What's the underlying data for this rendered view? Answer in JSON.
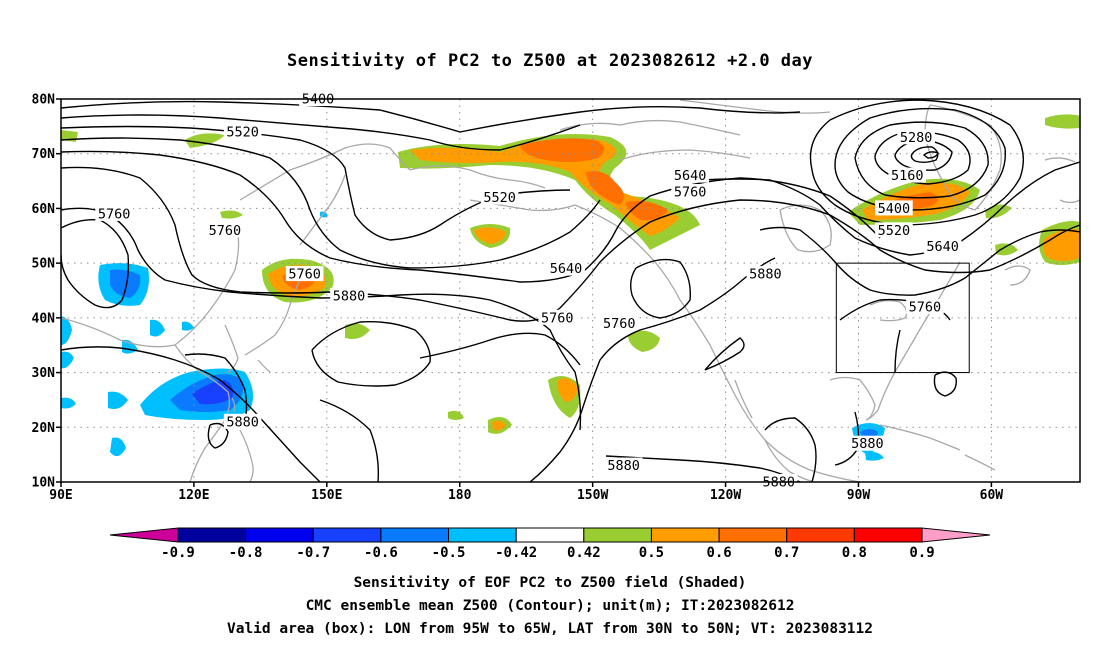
{
  "title": "Sensitivity of PC2 to Z500 at 2023082612 +2.0 day",
  "captions": [
    "Sensitivity of EOF PC2 to Z500 field (Shaded)",
    "CMC ensemble mean Z500 (Contour); unit(m); IT:2023082612",
    "Valid area (box): LON from 95W to 65W, LAT from 30N to 50N; VT: 2023083112"
  ],
  "map": {
    "lat_labels": [
      "80N",
      "70N",
      "60N",
      "50N",
      "40N",
      "30N",
      "20N",
      "10N"
    ],
    "lat_values": [
      80,
      70,
      60,
      50,
      40,
      30,
      20,
      10
    ],
    "lon_labels": [
      "90E",
      "120E",
      "150E",
      "180",
      "150W",
      "120W",
      "90W",
      "60W"
    ],
    "lon_values": [
      90,
      120,
      150,
      180,
      210,
      240,
      270,
      300
    ],
    "extent": {
      "lon_min": 90,
      "lon_max": 320,
      "lat_min": 10,
      "lat_max": 80
    },
    "valid_box": {
      "lon_min": 265,
      "lon_max": 295,
      "lat_min": 30,
      "lat_max": 50
    },
    "contour_labels": [
      {
        "text": "5400",
        "lon": 148,
        "lat": 80
      },
      {
        "text": "5520",
        "lon": 131,
        "lat": 74
      },
      {
        "text": "5760",
        "lon": 102,
        "lat": 59
      },
      {
        "text": "5760",
        "lon": 127,
        "lat": 56
      },
      {
        "text": "5760",
        "lon": 145,
        "lat": 48
      },
      {
        "text": "5880",
        "lon": 155,
        "lat": 44
      },
      {
        "text": "5880",
        "lon": 131,
        "lat": 21
      },
      {
        "text": "5520",
        "lon": 189,
        "lat": 62
      },
      {
        "text": "5640",
        "lon": 204,
        "lat": 49
      },
      {
        "text": "5760",
        "lon": 216,
        "lat": 39
      },
      {
        "text": "5760",
        "lon": 202,
        "lat": 40
      },
      {
        "text": "5640",
        "lon": 232,
        "lat": 66
      },
      {
        "text": "5760",
        "lon": 232,
        "lat": 63
      },
      {
        "text": "5880",
        "lon": 249,
        "lat": 48
      },
      {
        "text": "5880",
        "lon": 217,
        "lat": 13
      },
      {
        "text": "5880",
        "lon": 252,
        "lat": 10
      },
      {
        "text": "5280",
        "lon": 283,
        "lat": 73
      },
      {
        "text": "5160",
        "lon": 281,
        "lat": 66
      },
      {
        "text": "5400",
        "lon": 278,
        "lat": 60
      },
      {
        "text": "5520",
        "lon": 278,
        "lat": 56
      },
      {
        "text": "5640",
        "lon": 289,
        "lat": 53
      },
      {
        "text": "5760",
        "lon": 285,
        "lat": 42
      },
      {
        "text": "5880",
        "lon": 272,
        "lat": 17
      }
    ]
  },
  "colorbar": {
    "labels": [
      "-0.9",
      "-0.8",
      "-0.7",
      "-0.6",
      "-0.5",
      "-0.42",
      "0.42",
      "0.5",
      "0.6",
      "0.7",
      "0.8",
      "0.9"
    ],
    "colors": [
      "#00009e",
      "#0000f0",
      "#1840ff",
      "#0a7aff",
      "#00bfff",
      "#ffffff",
      "#9acd32",
      "#ff9d00",
      "#ff7000",
      "#ff3a00",
      "#ff0000"
    ],
    "under_color": "#cc0099",
    "over_color": "#ff9ec8"
  }
}
